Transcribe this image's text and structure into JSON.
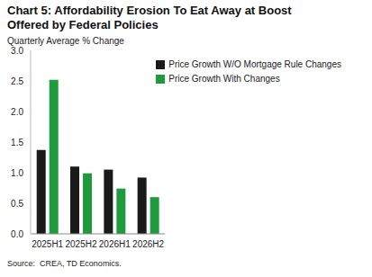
{
  "chart_data": {
    "type": "bar",
    "title": "Chart 5: Affordability Erosion To Eat Away at Boost Offered by Federal Policies",
    "ylabel": "Quarterly Average % Change",
    "annotations": [
      "Source:  CREA, TD Economics."
    ],
    "categories": [
      "2025H1",
      "2025H2",
      "2026H1",
      "2026H2"
    ],
    "series": [
      {
        "name": "Price Growth W/O Mortgage Rule Changes",
        "color": "#1a1a1a",
        "values": [
          1.37,
          1.1,
          1.05,
          0.92
        ]
      },
      {
        "name": "Price Growth With Changes",
        "color": "#1f9a3c",
        "values": [
          2.52,
          0.99,
          0.74,
          0.6
        ]
      }
    ],
    "ylim": [
      0,
      3
    ],
    "yticks": [
      {
        "value": 0,
        "label": "0.0"
      },
      {
        "value": 0.5,
        "label": "0.5"
      },
      {
        "value": 1,
        "label": "1.0"
      },
      {
        "value": 1.5,
        "label": "1.5"
      },
      {
        "value": 2,
        "label": "2.0"
      },
      {
        "value": 2.5,
        "label": "2.5"
      },
      {
        "value": 3,
        "label": "3.0"
      }
    ],
    "grid": false,
    "legend": "upper right"
  }
}
